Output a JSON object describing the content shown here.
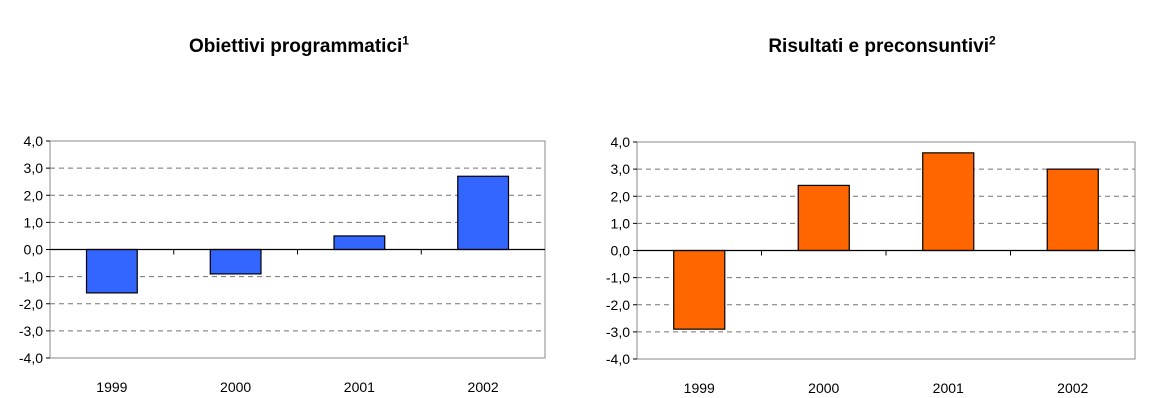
{
  "chart_data": [
    {
      "type": "bar",
      "title": "Obiettivi programmatici",
      "title_superscript": "1",
      "categories": [
        "1999",
        "2000",
        "2001",
        "2002"
      ],
      "values": [
        -1.6,
        -0.9,
        0.5,
        2.7
      ],
      "ylim": [
        -4.0,
        4.0
      ],
      "yticks": [
        "4,0",
        "3,0",
        "2,0",
        "1,0",
        "0,0",
        "-1,0",
        "-2,0",
        "-3,0",
        "-4,0"
      ],
      "grid": true,
      "bar_color": "#3366FF"
    },
    {
      "type": "bar",
      "title": "Risultati e preconsuntivi",
      "title_superscript": "2",
      "categories": [
        "1999",
        "2000",
        "2001",
        "2002"
      ],
      "values": [
        -2.9,
        2.4,
        3.6,
        3.0
      ],
      "ylim": [
        -4.0,
        4.0
      ],
      "yticks": [
        "4,0",
        "3,0",
        "2,0",
        "1,0",
        "0,0",
        "-1,0",
        "-2,0",
        "-3,0",
        "-4,0"
      ],
      "grid": true,
      "bar_color": "#FF6600"
    }
  ]
}
